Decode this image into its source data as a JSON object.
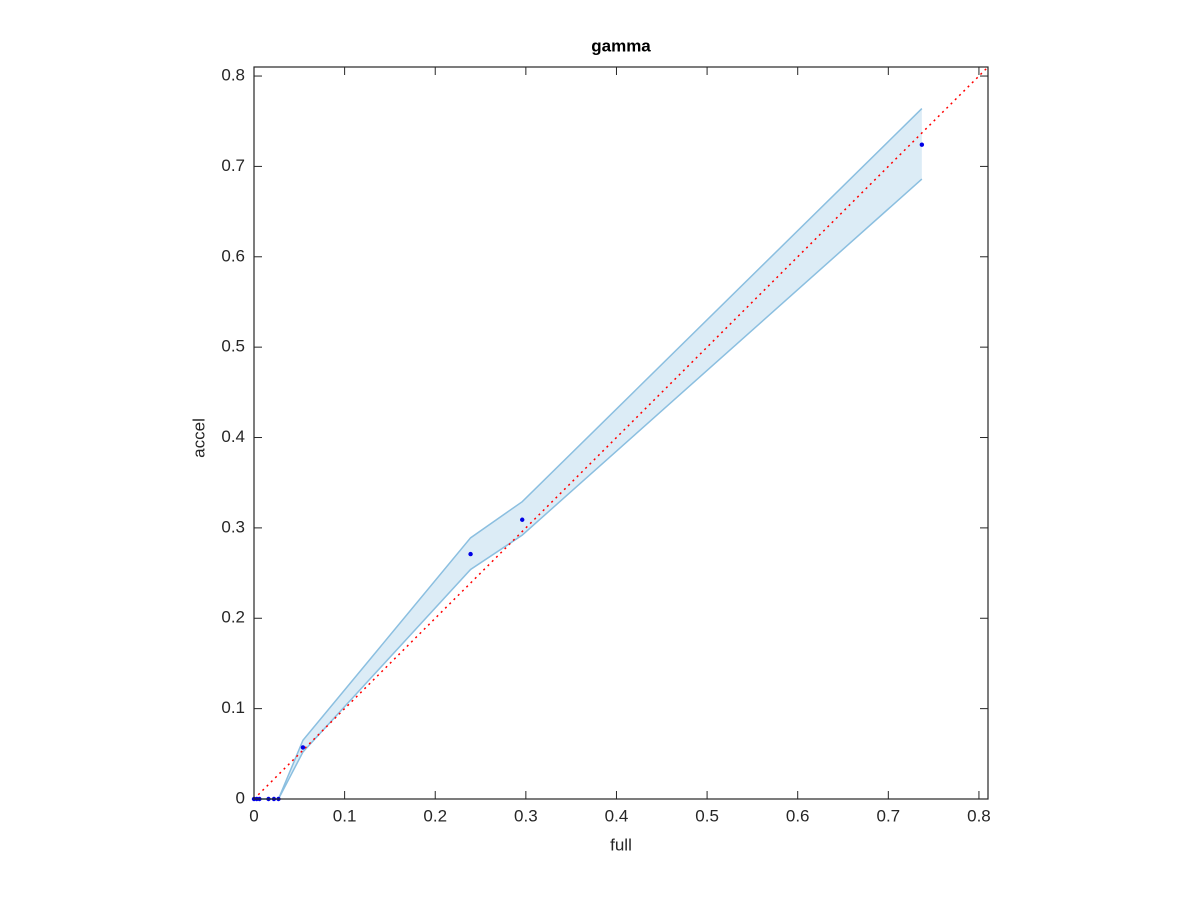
{
  "chart_data": {
    "type": "scatter",
    "title": "gamma",
    "x_label": "full",
    "y_label": "accel",
    "xlim": [
      0,
      0.81
    ],
    "ylim": [
      0,
      0.81
    ],
    "xticks": [
      0,
      0.1,
      0.2,
      0.3,
      0.4,
      0.5,
      0.6,
      0.7,
      0.8
    ],
    "yticks": [
      0,
      0.1,
      0.2,
      0.3,
      0.4,
      0.5,
      0.6,
      0.7,
      0.8
    ],
    "grid": false,
    "band": {
      "color": "#8bbfe0",
      "x": [
        0,
        0.003,
        0.006,
        0.016,
        0.022,
        0.027,
        0.054,
        0.239,
        0.296,
        0.737
      ],
      "upper": [
        0,
        0,
        0,
        0,
        0,
        0,
        0.065,
        0.289,
        0.329,
        0.764
      ],
      "lower": [
        0,
        0,
        0,
        0,
        0,
        0,
        0.052,
        0.254,
        0.292,
        0.686
      ]
    },
    "points": {
      "color": "#0000e6",
      "x": [
        0,
        0.003,
        0.006,
        0.016,
        0.022,
        0.027,
        0.054,
        0.239,
        0.296,
        0.737
      ],
      "values": [
        0,
        0,
        0,
        0,
        0,
        0,
        0.057,
        0.271,
        0.309,
        0.724
      ]
    },
    "reference": {
      "color": "#ff0000",
      "x": [
        0,
        0.81
      ],
      "values": [
        0,
        0.81
      ]
    }
  }
}
